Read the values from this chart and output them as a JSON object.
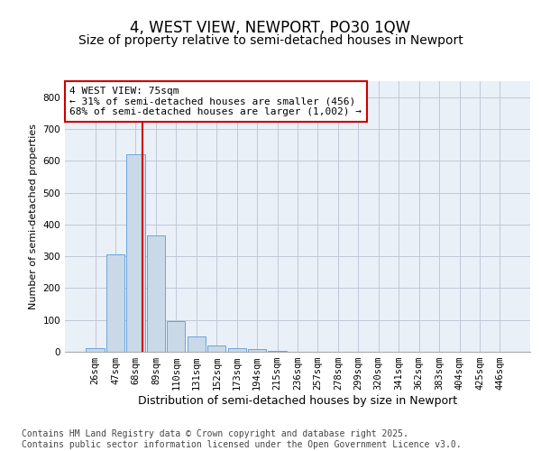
{
  "title": "4, WEST VIEW, NEWPORT, PO30 1QW",
  "subtitle": "Size of property relative to semi-detached houses in Newport",
  "xlabel": "Distribution of semi-detached houses by size in Newport",
  "ylabel": "Number of semi-detached properties",
  "categories": [
    "26sqm",
    "47sqm",
    "68sqm",
    "89sqm",
    "110sqm",
    "131sqm",
    "152sqm",
    "173sqm",
    "194sqm",
    "215sqm",
    "236sqm",
    "257sqm",
    "278sqm",
    "299sqm",
    "320sqm",
    "341sqm",
    "362sqm",
    "383sqm",
    "404sqm",
    "425sqm",
    "446sqm"
  ],
  "values": [
    12,
    305,
    620,
    365,
    97,
    47,
    20,
    10,
    8,
    2,
    0,
    0,
    0,
    0,
    0,
    0,
    0,
    0,
    0,
    0,
    0
  ],
  "bar_color": "#c9d9e8",
  "bar_edge_color": "#5b9bd5",
  "grid_color": "#c0c8d8",
  "bg_color": "#eaf0f8",
  "annotation_line1": "4 WEST VIEW: 75sqm",
  "annotation_line2": "← 31% of semi-detached houses are smaller (456)",
  "annotation_line3": "68% of semi-detached houses are larger (1,002) →",
  "annotation_box_color": "#ffffff",
  "annotation_box_edge": "#cc0000",
  "vline_color": "#cc0000",
  "ylim": [
    0,
    850
  ],
  "yticks": [
    0,
    100,
    200,
    300,
    400,
    500,
    600,
    700,
    800
  ],
  "footer_line1": "Contains HM Land Registry data © Crown copyright and database right 2025.",
  "footer_line2": "Contains public sector information licensed under the Open Government Licence v3.0.",
  "title_fontsize": 12,
  "subtitle_fontsize": 10,
  "xlabel_fontsize": 9,
  "ylabel_fontsize": 8,
  "tick_fontsize": 7.5,
  "annotation_fontsize": 8,
  "footer_fontsize": 7
}
